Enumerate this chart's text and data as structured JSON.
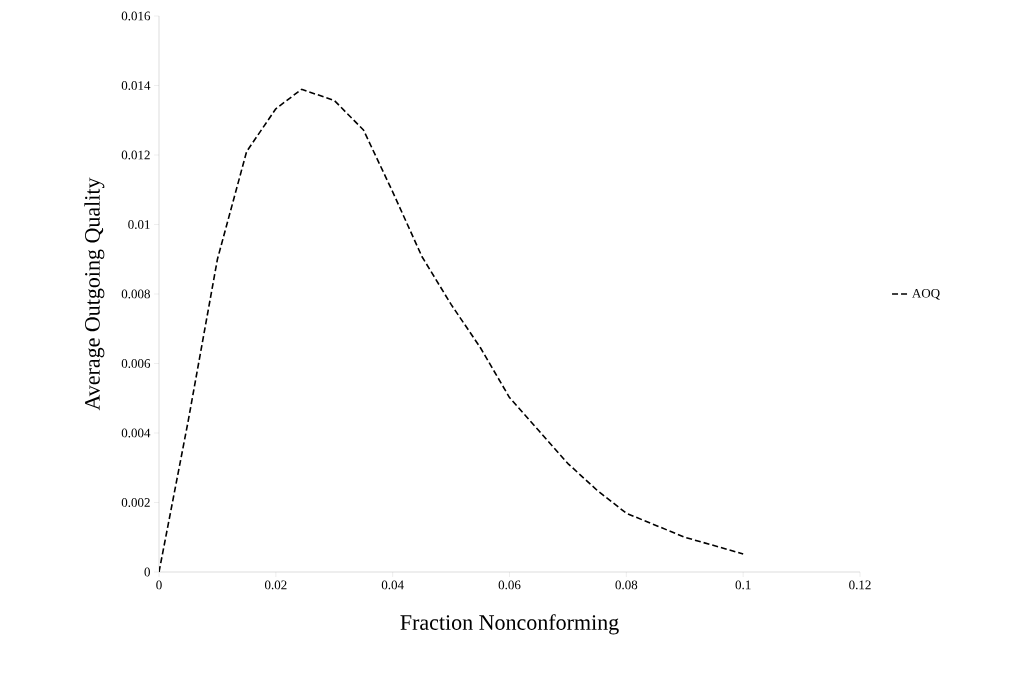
{
  "chart_data": {
    "type": "line",
    "xlabel": "Fraction Nonconforming",
    "ylabel": "Average Outgoing Quality",
    "x": [
      0,
      0.005,
      0.01,
      0.015,
      0.02,
      0.0244,
      0.03,
      0.035,
      0.04,
      0.045,
      0.05,
      0.055,
      0.06,
      0.065,
      0.07,
      0.075,
      0.08,
      0.09,
      0.1
    ],
    "series": [
      {
        "name": "AOQ",
        "color": "#000000",
        "values": [
          0,
          0.00435,
          0.009,
          0.0121,
          0.01333,
          0.01389,
          0.01357,
          0.01272,
          0.01094,
          0.00908,
          0.0077,
          0.00646,
          0.00502,
          0.00407,
          0.00312,
          0.00235,
          0.00169,
          0.001,
          0.00052
        ]
      }
    ],
    "xlim": [
      0,
      0.12
    ],
    "ylim": [
      0,
      0.016
    ],
    "xticks": [
      0,
      0.02,
      0.04,
      0.06,
      0.08,
      0.1,
      0.12
    ],
    "yticks": [
      0,
      0.002,
      0.004,
      0.006,
      0.008,
      0.01,
      0.012,
      0.014,
      0.016
    ],
    "grid": false,
    "legend": "right",
    "marker": "none",
    "line_style": "dashed"
  }
}
